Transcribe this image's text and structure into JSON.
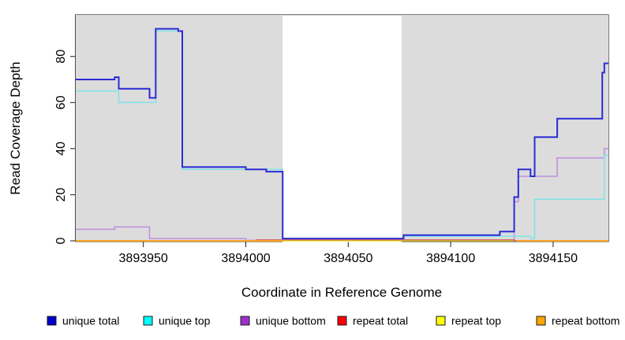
{
  "chart_data": {
    "type": "line",
    "subtype": "step",
    "title": "",
    "xlabel": "Coordinate in Reference Genome",
    "ylabel": "Read Coverage Depth",
    "xlim": [
      3893917,
      3894177
    ],
    "ylim": [
      0,
      98
    ],
    "x_ticks": [
      {
        "value": 3893950,
        "label": "3893950"
      },
      {
        "value": 3894000,
        "label": "3894000"
      },
      {
        "value": 3894050,
        "label": "3894050"
      },
      {
        "value": 3894100,
        "label": "3894100"
      },
      {
        "value": 3894150,
        "label": "3894150"
      }
    ],
    "y_ticks": [
      {
        "value": 0,
        "label": "0"
      },
      {
        "value": 20,
        "label": "20"
      },
      {
        "value": 40,
        "label": "40"
      },
      {
        "value": 60,
        "label": "60"
      },
      {
        "value": 80,
        "label": "80"
      }
    ],
    "grid": false,
    "panel_bg": "#DCDCDC",
    "masked_region": {
      "start": 3894018,
      "end": 3894076,
      "color": "#FFFFFF"
    },
    "legend_position": "bottom",
    "series": [
      {
        "name": "unique-total",
        "legend_label": "unique total",
        "legend_color": "#0000CD",
        "line_color": "#2B2BD5",
        "line_width": 2,
        "z": 3,
        "segments": [
          [
            [
              3893917,
              70
            ],
            [
              3893936,
              71
            ],
            [
              3893938,
              66
            ],
            [
              3893953,
              62
            ],
            [
              3893956,
              92
            ],
            [
              3893967,
              91
            ],
            [
              3893969,
              32
            ],
            [
              3894000,
              31
            ],
            [
              3894010,
              30
            ],
            [
              3894018,
              1
            ],
            [
              3894077,
              2.5
            ],
            [
              3894124,
              4
            ],
            [
              3894131,
              19
            ],
            [
              3894133,
              31
            ],
            [
              3894139,
              28
            ],
            [
              3894141,
              45
            ],
            [
              3894152,
              53
            ],
            [
              3894174,
              73
            ],
            [
              3894175,
              77
            ],
            [
              3894177,
              77
            ]
          ]
        ]
      },
      {
        "name": "unique-top",
        "legend_label": "unique top",
        "legend_color": "#00FFFF",
        "line_color": "#7FE2E8",
        "line_width": 1.5,
        "z": 2,
        "segments": [
          [
            [
              3893917,
              65
            ],
            [
              3893938,
              60
            ],
            [
              3893956,
              91
            ],
            [
              3893969,
              31
            ],
            [
              3894018,
              0.4
            ],
            [
              3894077,
              2
            ],
            [
              3894139,
              1
            ],
            [
              3894141,
              18
            ],
            [
              3894175,
              37
            ],
            [
              3894177,
              37
            ]
          ]
        ]
      },
      {
        "name": "unique-bottom",
        "legend_label": "unique bottom",
        "legend_color": "#9932CC",
        "line_color": "#BE8EDC",
        "line_width": 1.5,
        "z": 1,
        "segments": [
          [
            [
              3893917,
              5
            ],
            [
              3893936,
              6
            ],
            [
              3893953,
              1
            ],
            [
              3894000,
              0.2
            ],
            [
              3894131,
              17
            ],
            [
              3894133,
              28
            ],
            [
              3894152,
              36
            ],
            [
              3894175,
              40
            ],
            [
              3894177,
              40
            ]
          ]
        ]
      },
      {
        "name": "repeat-total",
        "legend_label": "repeat total",
        "legend_color": "#FF0000",
        "line_color": "#D05A6E",
        "line_width": 1.3,
        "z": 5,
        "segments": [
          [
            [
              3893917,
              0
            ],
            [
              3894005,
              0.4
            ],
            [
              3894131,
              0
            ],
            [
              3894177,
              0
            ]
          ]
        ]
      },
      {
        "name": "repeat-top",
        "legend_label": "repeat top",
        "legend_color": "#FFFF00",
        "line_color": "#E8E800",
        "line_width": 1.3,
        "z": 4,
        "segments": [
          [
            [
              3893917,
              0
            ],
            [
              3894177,
              0
            ]
          ]
        ]
      },
      {
        "name": "repeat-bottom",
        "legend_label": "repeat bottom",
        "legend_color": "#FFA500",
        "line_color": "#FFA320",
        "line_width": 2,
        "z": 6,
        "segments": [
          [
            [
              3893917,
              0
            ],
            [
              3894018,
              0
            ]
          ],
          [
            [
              3894132,
              0
            ],
            [
              3894177,
              0
            ]
          ]
        ]
      }
    ]
  }
}
